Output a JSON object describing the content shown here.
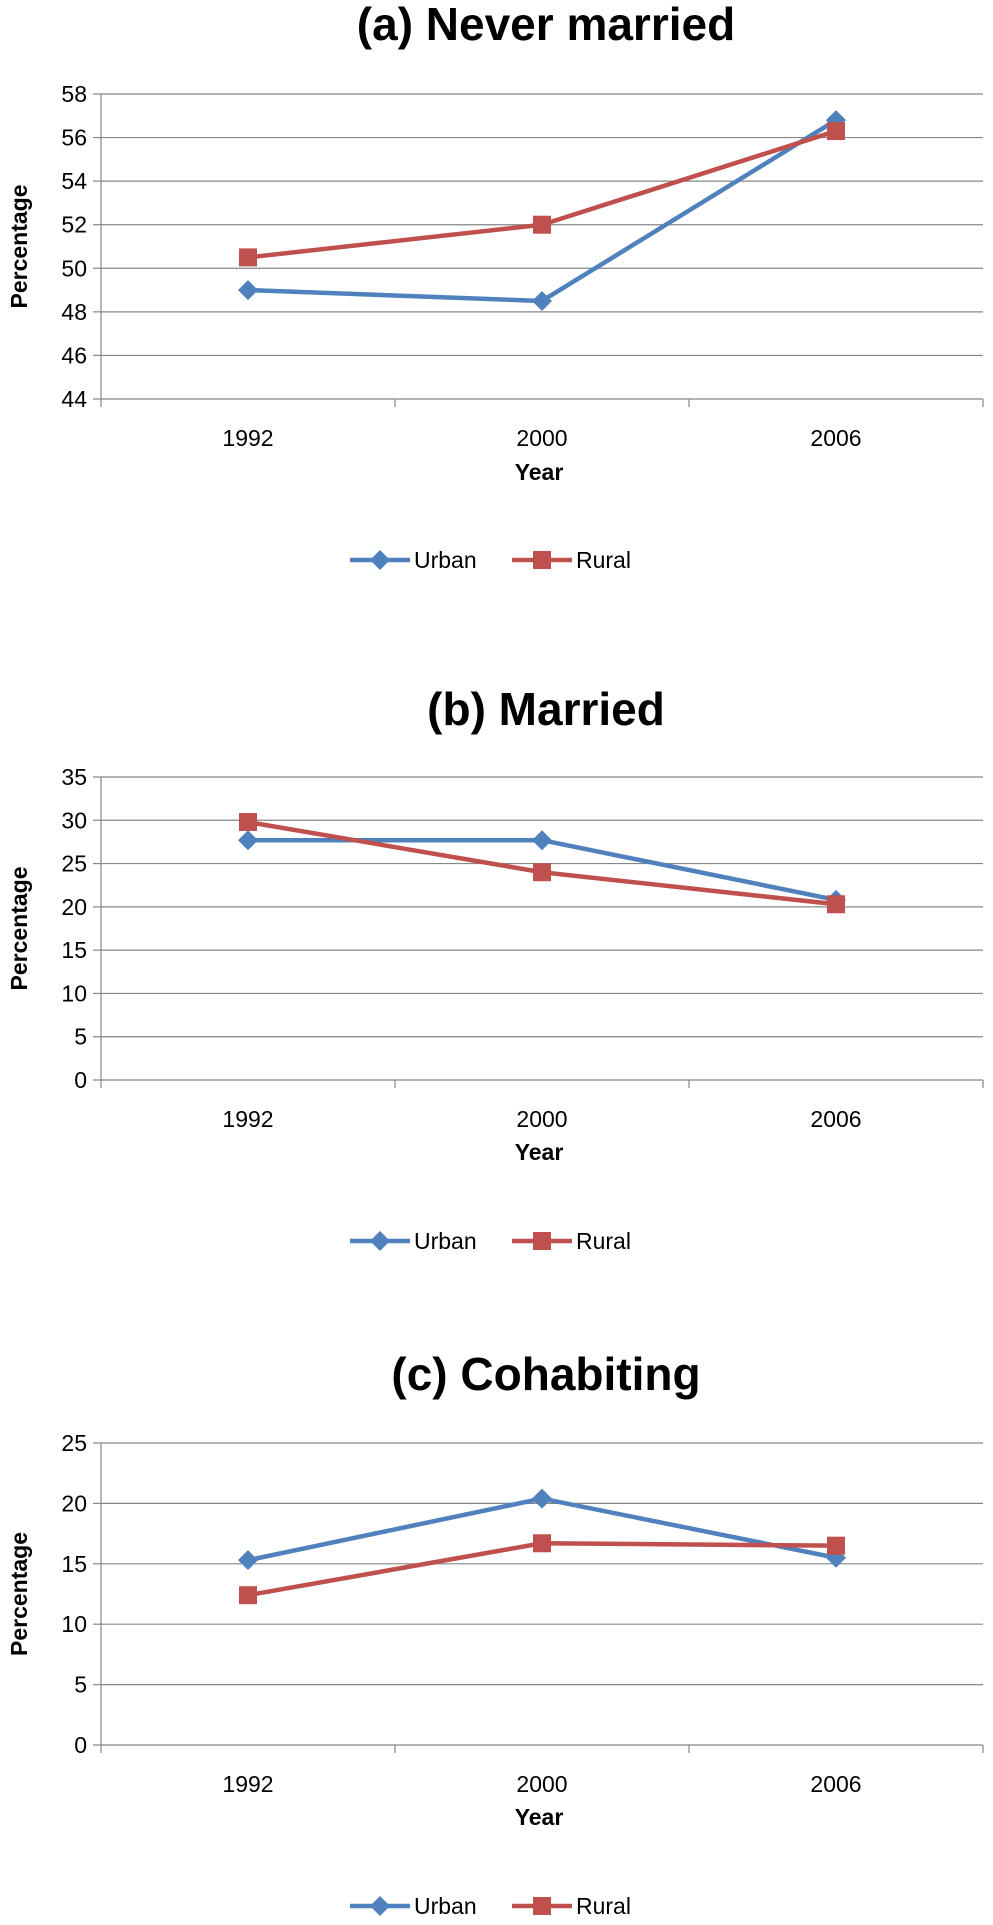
{
  "chart_data": [
    {
      "type": "line",
      "title": "(a) Never married",
      "xlabel": "Year",
      "ylabel": "Percentage",
      "categories": [
        "1992",
        "2000",
        "2006"
      ],
      "ylim": [
        44,
        58
      ],
      "ystep": 2,
      "grid": true,
      "legend": "bottom",
      "series": [
        {
          "name": "Urban",
          "values": [
            49.0,
            48.5,
            56.8
          ],
          "color": "#4f81bd",
          "marker": "diamond"
        },
        {
          "name": "Rural",
          "values": [
            50.5,
            52.0,
            56.3
          ],
          "color": "#c0504d",
          "marker": "square"
        }
      ]
    },
    {
      "type": "line",
      "title": "(b) Married",
      "xlabel": "Year",
      "ylabel": "Percentage",
      "categories": [
        "1992",
        "2000",
        "2006"
      ],
      "ylim": [
        0,
        35
      ],
      "ystep": 5,
      "grid": true,
      "legend": "bottom",
      "series": [
        {
          "name": "Urban",
          "values": [
            27.7,
            27.7,
            20.8
          ],
          "color": "#4f81bd",
          "marker": "diamond"
        },
        {
          "name": "Rural",
          "values": [
            29.8,
            24.0,
            20.3
          ],
          "color": "#c0504d",
          "marker": "square"
        }
      ]
    },
    {
      "type": "line",
      "title": "(c) Cohabiting",
      "xlabel": "Year",
      "ylabel": "Percentage",
      "categories": [
        "1992",
        "2000",
        "2006"
      ],
      "ylim": [
        0,
        25
      ],
      "ystep": 5,
      "grid": true,
      "legend": "bottom",
      "series": [
        {
          "name": "Urban",
          "values": [
            15.3,
            20.4,
            15.5
          ],
          "color": "#4f81bd",
          "marker": "diamond"
        },
        {
          "name": "Rural",
          "values": [
            12.4,
            16.7,
            16.5
          ],
          "color": "#c0504d",
          "marker": "square"
        }
      ]
    }
  ]
}
